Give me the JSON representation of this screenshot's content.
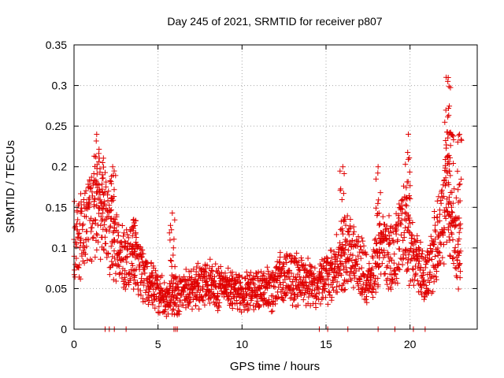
{
  "chart_data": {
    "type": "scatter",
    "title": "Day 245 of 2021, SRMTID for receiver p807",
    "xlabel": "GPS time / hours",
    "ylabel": "SRMTID / TECUs",
    "xlim": [
      0,
      24
    ],
    "ylim": [
      0,
      0.35
    ],
    "x_ticks": [
      0,
      5,
      10,
      15,
      20
    ],
    "x_tick_labels": [
      "0",
      "5",
      "10",
      "15",
      "20"
    ],
    "y_ticks": [
      0,
      0.05,
      0.1,
      0.15,
      0.2,
      0.25,
      0.3,
      0.35
    ],
    "y_tick_labels": [
      "0",
      "0.05",
      "0.1",
      "0.15",
      "0.2",
      "0.25",
      "0.3",
      "0.35"
    ],
    "grid": true,
    "marker": "+",
    "marker_color": "#e00000",
    "series": [
      {
        "name": "SRMTID",
        "sample_step_hours": 0.025,
        "baseline_profile": [
          [
            0.0,
            0.11
          ],
          [
            0.5,
            0.11
          ],
          [
            1.0,
            0.135
          ],
          [
            1.3,
            0.15
          ],
          [
            1.7,
            0.135
          ],
          [
            2.3,
            0.11
          ],
          [
            3.0,
            0.08
          ],
          [
            3.6,
            0.085
          ],
          [
            4.5,
            0.055
          ],
          [
            5.0,
            0.045
          ],
          [
            5.5,
            0.04
          ],
          [
            6.5,
            0.045
          ],
          [
            8.0,
            0.055
          ],
          [
            9.5,
            0.045
          ],
          [
            11.0,
            0.045
          ],
          [
            11.8,
            0.05
          ],
          [
            12.5,
            0.065
          ],
          [
            13.5,
            0.058
          ],
          [
            14.5,
            0.05
          ],
          [
            15.5,
            0.07
          ],
          [
            16.3,
            0.09
          ],
          [
            17.0,
            0.075
          ],
          [
            17.7,
            0.06
          ],
          [
            18.4,
            0.095
          ],
          [
            19.0,
            0.085
          ],
          [
            19.7,
            0.13
          ],
          [
            20.2,
            0.08
          ],
          [
            21.0,
            0.065
          ],
          [
            21.8,
            0.12
          ],
          [
            22.2,
            0.16
          ],
          [
            22.6,
            0.11
          ],
          [
            23.0,
            0.09
          ]
        ],
        "peaks": [
          {
            "x": 1.35,
            "y": 0.24
          },
          {
            "x": 1.7,
            "y": 0.205
          },
          {
            "x": 2.3,
            "y": 0.2
          },
          {
            "x": 3.55,
            "y": 0.135
          },
          {
            "x": 5.85,
            "y": 0.143
          },
          {
            "x": 16.0,
            "y": 0.2
          },
          {
            "x": 18.1,
            "y": 0.2
          },
          {
            "x": 19.9,
            "y": 0.24
          },
          {
            "x": 22.15,
            "y": 0.31
          },
          {
            "x": 22.25,
            "y": 0.305
          },
          {
            "x": 22.45,
            "y": 0.24
          },
          {
            "x": 22.95,
            "y": 0.24
          }
        ],
        "zero_values_at": [
          1.85,
          2.1,
          2.4,
          3.1,
          5.95,
          6.05,
          6.15,
          14.6,
          15.1,
          16.3,
          18.1,
          19.1,
          20.2,
          20.9
        ]
      }
    ]
  }
}
